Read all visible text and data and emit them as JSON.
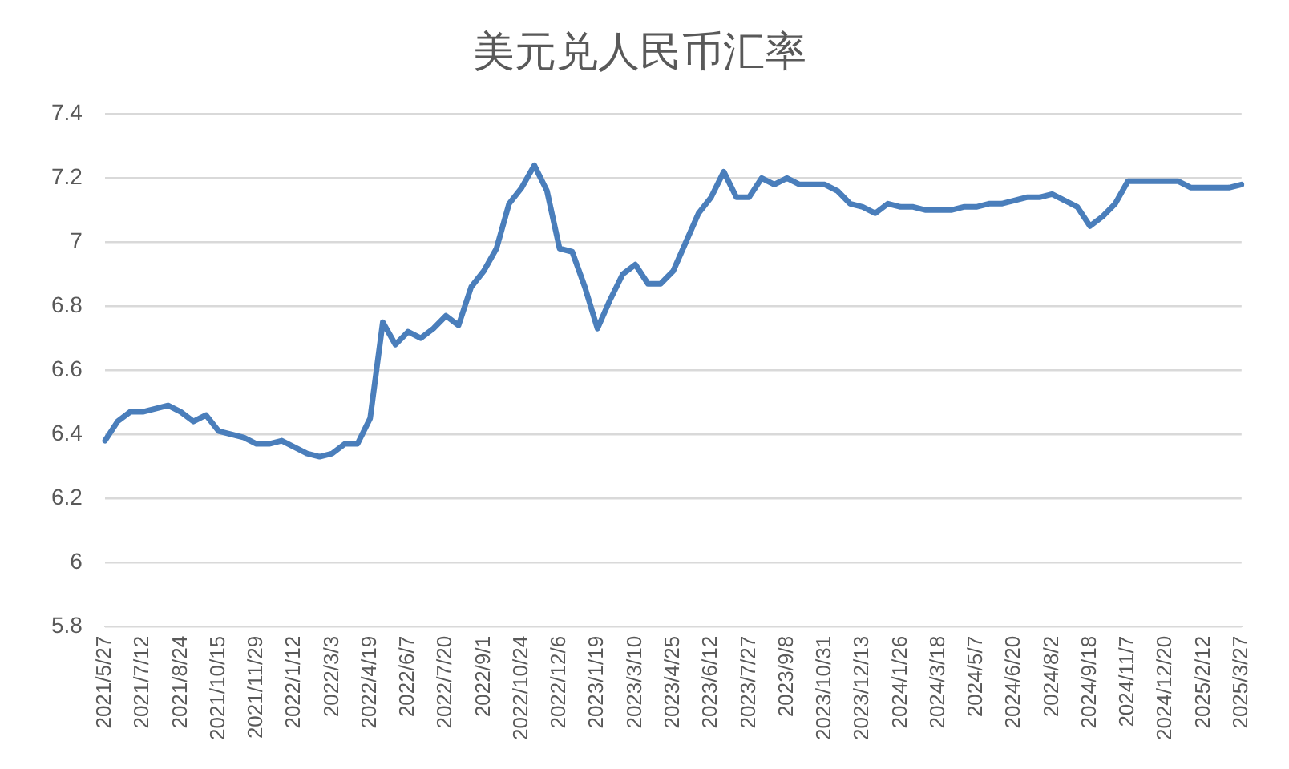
{
  "chart_data": {
    "type": "line",
    "title": "美元兑人民币汇率",
    "categories": [
      "2021/5/27",
      null,
      null,
      "2021/7/12",
      null,
      null,
      "2021/8/24",
      null,
      null,
      "2021/10/15",
      null,
      null,
      "2021/11/29",
      null,
      null,
      "2022/1/12",
      null,
      null,
      "2022/3/3",
      null,
      null,
      "2022/4/19",
      null,
      null,
      "2022/6/7",
      null,
      null,
      "2022/7/20",
      null,
      null,
      "2022/9/1",
      null,
      null,
      "2022/10/24",
      null,
      null,
      "2022/12/6",
      null,
      null,
      "2023/1/19",
      null,
      null,
      "2023/3/10",
      null,
      null,
      "2023/4/25",
      null,
      null,
      "2023/6/12",
      null,
      null,
      "2023/7/27",
      null,
      null,
      "2023/9/8",
      null,
      null,
      "2023/10/31",
      null,
      null,
      "2023/12/13",
      null,
      null,
      "2024/1/26",
      null,
      null,
      "2024/3/18",
      null,
      null,
      "2024/5/7",
      null,
      null,
      "2024/6/20",
      null,
      null,
      "2024/8/2",
      null,
      null,
      "2024/9/18",
      null,
      null,
      "2024/11/7",
      null,
      null,
      "2024/12/20",
      null,
      null,
      "2025/2/12",
      null,
      null,
      "2025/3/27"
    ],
    "series": [
      {
        "color": "#4a7ebb",
        "values": [
          6.38,
          6.44,
          6.47,
          6.47,
          6.48,
          6.49,
          6.47,
          6.44,
          6.46,
          6.41,
          6.4,
          6.39,
          6.37,
          6.37,
          6.38,
          6.36,
          6.34,
          6.33,
          6.34,
          6.37,
          6.37,
          6.45,
          6.75,
          6.68,
          6.72,
          6.7,
          6.73,
          6.77,
          6.74,
          6.86,
          6.91,
          6.98,
          7.12,
          7.17,
          7.24,
          7.16,
          6.98,
          6.97,
          6.86,
          6.73,
          6.82,
          6.9,
          6.93,
          6.87,
          6.87,
          6.91,
          7.0,
          7.09,
          7.14,
          7.22,
          7.14,
          7.14,
          7.2,
          7.18,
          7.2,
          7.18,
          7.18,
          7.18,
          7.16,
          7.12,
          7.11,
          7.09,
          7.12,
          7.11,
          7.11,
          7.1,
          7.1,
          7.1,
          7.11,
          7.11,
          7.12,
          7.12,
          7.13,
          7.14,
          7.14,
          7.15,
          7.13,
          7.11,
          7.05,
          7.08,
          7.12,
          7.19,
          7.19,
          7.19,
          7.19,
          7.19,
          7.17,
          7.17,
          7.17,
          7.17,
          7.18
        ]
      }
    ],
    "ylim": [
      5.8,
      7.4
    ],
    "yticks": [
      5.8,
      6,
      6.2,
      6.4,
      6.6,
      6.8,
      7,
      7.2,
      7.4
    ],
    "grid": "y",
    "legend": false,
    "marker": "none",
    "line_style": "solid"
  }
}
